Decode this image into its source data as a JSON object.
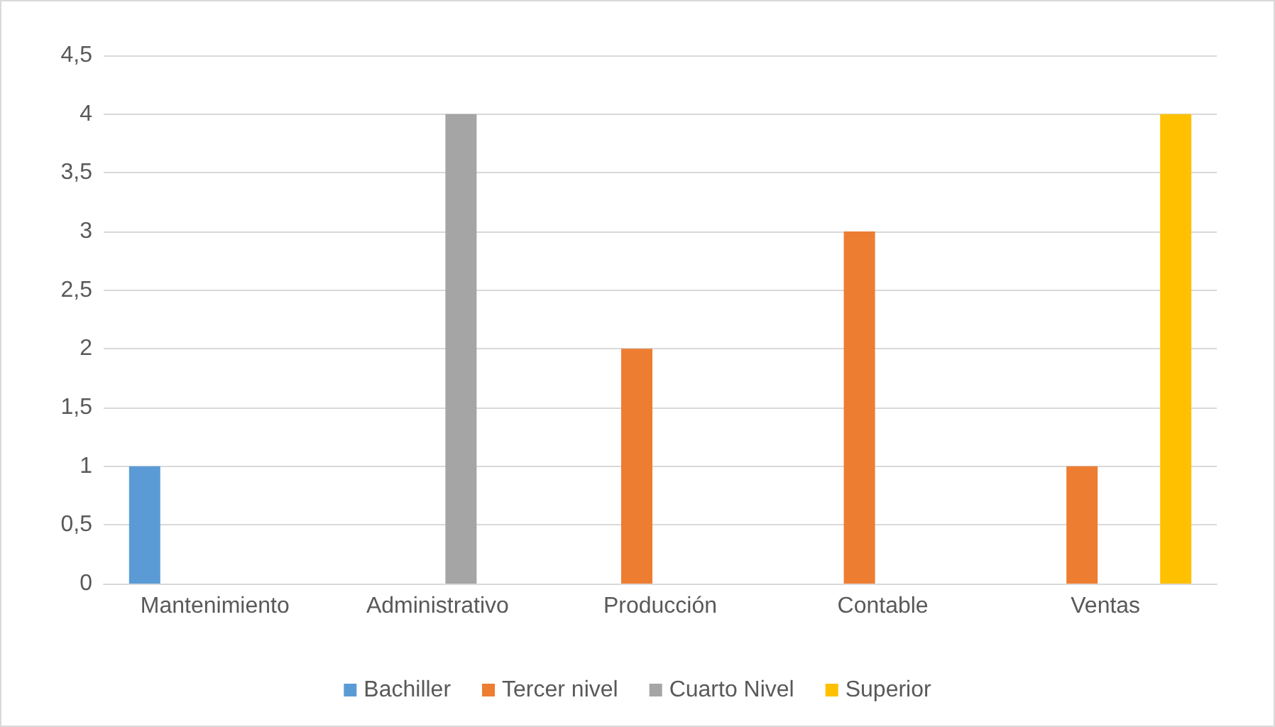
{
  "chart_data": {
    "type": "bar",
    "categories": [
      "Mantenimiento",
      "Administrativo",
      "Producción",
      "Contable",
      "Ventas"
    ],
    "series": [
      {
        "name": "Bachiller",
        "color": "#5b9bd5",
        "values": [
          1,
          0,
          0,
          0,
          0
        ]
      },
      {
        "name": "Tercer nivel",
        "color": "#ed7d31",
        "values": [
          0,
          0,
          2,
          3,
          1
        ]
      },
      {
        "name": "Cuarto Nivel",
        "color": "#a5a5a5",
        "values": [
          0,
          4,
          0,
          0,
          0
        ]
      },
      {
        "name": "Superior",
        "color": "#ffc000",
        "values": [
          0,
          0,
          0,
          0,
          4
        ]
      }
    ],
    "ylim": [
      0,
      4.5
    ],
    "yticks": [
      0,
      {
        "value": 0.5,
        "label": "0,5"
      },
      1,
      {
        "value": 1.5,
        "label": "1,5"
      },
      2,
      {
        "value": 2.5,
        "label": "2,5"
      },
      3,
      {
        "value": 3.5,
        "label": "3,5"
      },
      4,
      {
        "value": 4.5,
        "label": "4,5"
      }
    ],
    "grid": "y",
    "legend": "bottom"
  }
}
